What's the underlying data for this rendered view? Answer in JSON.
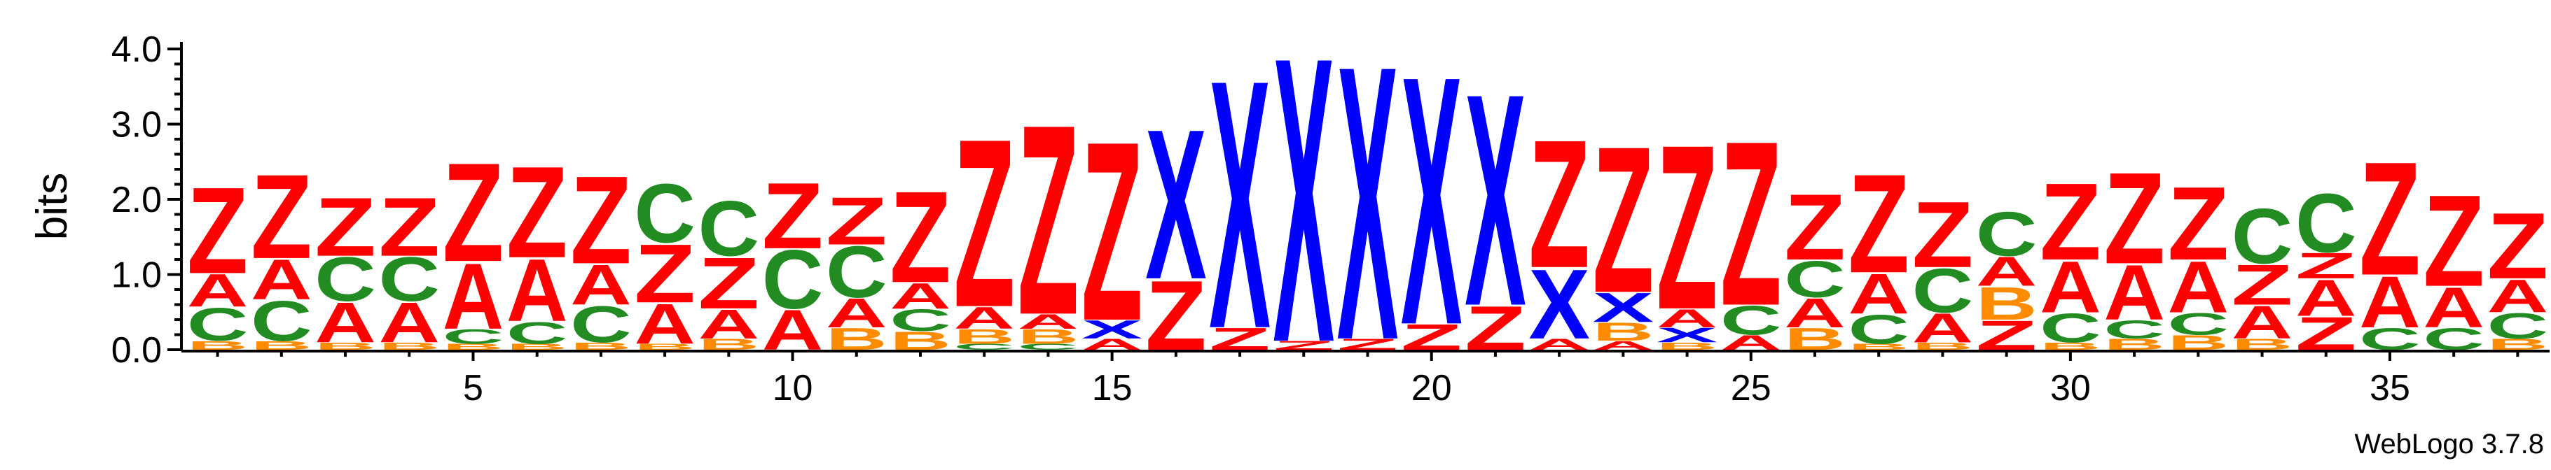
{
  "chart_data": {
    "type": "sequence-logo",
    "ylabel": "bits",
    "ylim": [
      0,
      4.0
    ],
    "yticks": [
      "0.0",
      "1.0",
      "2.0",
      "3.0",
      "4.0"
    ],
    "xticks": [
      5,
      10,
      15,
      20,
      25,
      30,
      35
    ],
    "positions": 37,
    "credit": "WebLogo 3.7.8",
    "colors": {
      "Z": "#ff0000",
      "A": "#ff0000",
      "C": "#228b22",
      "B": "#ff8c00",
      "X": "#0000ff"
    },
    "columns": [
      {
        "pos": 1,
        "stack": [
          [
            "B",
            0.12
          ],
          [
            "C",
            0.45
          ],
          [
            "A",
            0.45
          ],
          [
            "Z",
            1.18
          ]
        ]
      },
      {
        "pos": 2,
        "stack": [
          [
            "B",
            0.12
          ],
          [
            "C",
            0.55
          ],
          [
            "A",
            0.55
          ],
          [
            "Z",
            1.15
          ]
        ]
      },
      {
        "pos": 3,
        "stack": [
          [
            "B",
            0.1
          ],
          [
            "A",
            0.55
          ],
          [
            "C",
            0.6
          ],
          [
            "Z",
            0.8
          ]
        ]
      },
      {
        "pos": 4,
        "stack": [
          [
            "B",
            0.1
          ],
          [
            "A",
            0.55
          ],
          [
            "C",
            0.6
          ],
          [
            "Z",
            0.8
          ]
        ]
      },
      {
        "pos": 5,
        "stack": [
          [
            "B",
            0.08
          ],
          [
            "C",
            0.2
          ],
          [
            "A",
            0.9
          ],
          [
            "Z",
            1.35
          ]
        ]
      },
      {
        "pos": 6,
        "stack": [
          [
            "B",
            0.08
          ],
          [
            "C",
            0.3
          ],
          [
            "A",
            0.85
          ],
          [
            "Z",
            1.25
          ]
        ]
      },
      {
        "pos": 7,
        "stack": [
          [
            "B",
            0.1
          ],
          [
            "C",
            0.5
          ],
          [
            "A",
            0.55
          ],
          [
            "Z",
            1.2
          ]
        ]
      },
      {
        "pos": 8,
        "stack": [
          [
            "B",
            0.08
          ],
          [
            "A",
            0.55
          ],
          [
            "Z",
            0.8
          ],
          [
            "C",
            0.8
          ]
        ]
      },
      {
        "pos": 9,
        "stack": [
          [
            "B",
            0.15
          ],
          [
            "A",
            0.4
          ],
          [
            "Z",
            0.7
          ],
          [
            "C",
            0.75
          ]
        ]
      },
      {
        "pos": 10,
        "stack": [
          [
            "A",
            0.55
          ],
          [
            "C",
            0.8
          ],
          [
            "Z",
            0.9
          ]
        ]
      },
      {
        "pos": 11,
        "stack": [
          [
            "B",
            0.3
          ],
          [
            "A",
            0.4
          ],
          [
            "C",
            0.7
          ],
          [
            "Z",
            0.65
          ]
        ]
      },
      {
        "pos": 12,
        "stack": [
          [
            "B",
            0.25
          ],
          [
            "C",
            0.3
          ],
          [
            "A",
            0.35
          ],
          [
            "Z",
            1.25
          ]
        ]
      },
      {
        "pos": 13,
        "stack": [
          [
            "C",
            0.08
          ],
          [
            "B",
            0.2
          ],
          [
            "A",
            0.3
          ],
          [
            "Z",
            2.3
          ]
        ]
      },
      {
        "pos": 14,
        "stack": [
          [
            "C",
            0.08
          ],
          [
            "B",
            0.2
          ],
          [
            "A",
            0.2
          ],
          [
            "Z",
            2.6
          ]
        ]
      },
      {
        "pos": 15,
        "stack": [
          [
            "A",
            0.15
          ],
          [
            "X",
            0.25
          ],
          [
            "Z",
            2.45
          ]
        ]
      },
      {
        "pos": 16,
        "stack": [
          [
            "Z",
            0.95
          ],
          [
            "X",
            2.05
          ]
        ]
      },
      {
        "pos": 17,
        "stack": [
          [
            "Z",
            0.3
          ],
          [
            "X",
            3.4
          ]
        ]
      },
      {
        "pos": 18,
        "stack": [
          [
            "Z",
            0.12
          ],
          [
            "X",
            3.9
          ]
        ]
      },
      {
        "pos": 19,
        "stack": [
          [
            "Z",
            0.15
          ],
          [
            "X",
            3.75
          ]
        ]
      },
      {
        "pos": 20,
        "stack": [
          [
            "Z",
            0.35
          ],
          [
            "X",
            3.4
          ]
        ]
      },
      {
        "pos": 21,
        "stack": [
          [
            "Z",
            0.6
          ],
          [
            "X",
            2.9
          ]
        ]
      },
      {
        "pos": 22,
        "stack": [
          [
            "A",
            0.15
          ],
          [
            "X",
            0.95
          ],
          [
            "Z",
            1.75
          ]
        ]
      },
      {
        "pos": 23,
        "stack": [
          [
            "A",
            0.12
          ],
          [
            "B",
            0.25
          ],
          [
            "X",
            0.4
          ],
          [
            "Z",
            2.0
          ]
        ]
      },
      {
        "pos": 24,
        "stack": [
          [
            "B",
            0.1
          ],
          [
            "X",
            0.2
          ],
          [
            "A",
            0.25
          ],
          [
            "Z",
            2.25
          ]
        ]
      },
      {
        "pos": 25,
        "stack": [
          [
            "A",
            0.2
          ],
          [
            "C",
            0.4
          ],
          [
            "Z",
            2.25
          ]
        ]
      },
      {
        "pos": 26,
        "stack": [
          [
            "B",
            0.3
          ],
          [
            "A",
            0.4
          ],
          [
            "C",
            0.5
          ],
          [
            "Z",
            0.9
          ]
        ]
      },
      {
        "pos": 27,
        "stack": [
          [
            "B",
            0.08
          ],
          [
            "C",
            0.4
          ],
          [
            "A",
            0.55
          ],
          [
            "Z",
            1.35
          ]
        ]
      },
      {
        "pos": 28,
        "stack": [
          [
            "B",
            0.1
          ],
          [
            "A",
            0.4
          ],
          [
            "C",
            0.6
          ],
          [
            "Z",
            0.9
          ]
        ]
      },
      {
        "pos": 29,
        "stack": [
          [
            "Z",
            0.4
          ],
          [
            "B",
            0.45
          ],
          [
            "A",
            0.4
          ],
          [
            "C",
            0.6
          ]
        ]
      },
      {
        "pos": 30,
        "stack": [
          [
            "B",
            0.1
          ],
          [
            "C",
            0.4
          ],
          [
            "A",
            0.7
          ],
          [
            "Z",
            1.05
          ]
        ]
      },
      {
        "pos": 31,
        "stack": [
          [
            "B",
            0.15
          ],
          [
            "C",
            0.25
          ],
          [
            "A",
            0.75
          ],
          [
            "Z",
            1.25
          ]
        ]
      },
      {
        "pos": 32,
        "stack": [
          [
            "B",
            0.2
          ],
          [
            "C",
            0.3
          ],
          [
            "A",
            0.7
          ],
          [
            "Z",
            1.0
          ]
        ]
      },
      {
        "pos": 33,
        "stack": [
          [
            "B",
            0.15
          ],
          [
            "A",
            0.45
          ],
          [
            "Z",
            0.55
          ],
          [
            "C",
            0.75
          ]
        ]
      },
      {
        "pos": 34,
        "stack": [
          [
            "Z",
            0.45
          ],
          [
            "A",
            0.5
          ],
          [
            "Z",
            0.35
          ],
          [
            "C",
            0.8
          ]
        ]
      },
      {
        "pos": 35,
        "stack": [
          [
            "C",
            0.3
          ],
          [
            "A",
            0.7
          ],
          [
            "Z",
            1.55
          ]
        ]
      },
      {
        "pos": 36,
        "stack": [
          [
            "C",
            0.3
          ],
          [
            "A",
            0.55
          ],
          [
            "Z",
            1.25
          ]
        ]
      },
      {
        "pos": 37,
        "stack": [
          [
            "B",
            0.15
          ],
          [
            "C",
            0.35
          ],
          [
            "A",
            0.45
          ],
          [
            "Z",
            0.9
          ]
        ]
      }
    ]
  }
}
